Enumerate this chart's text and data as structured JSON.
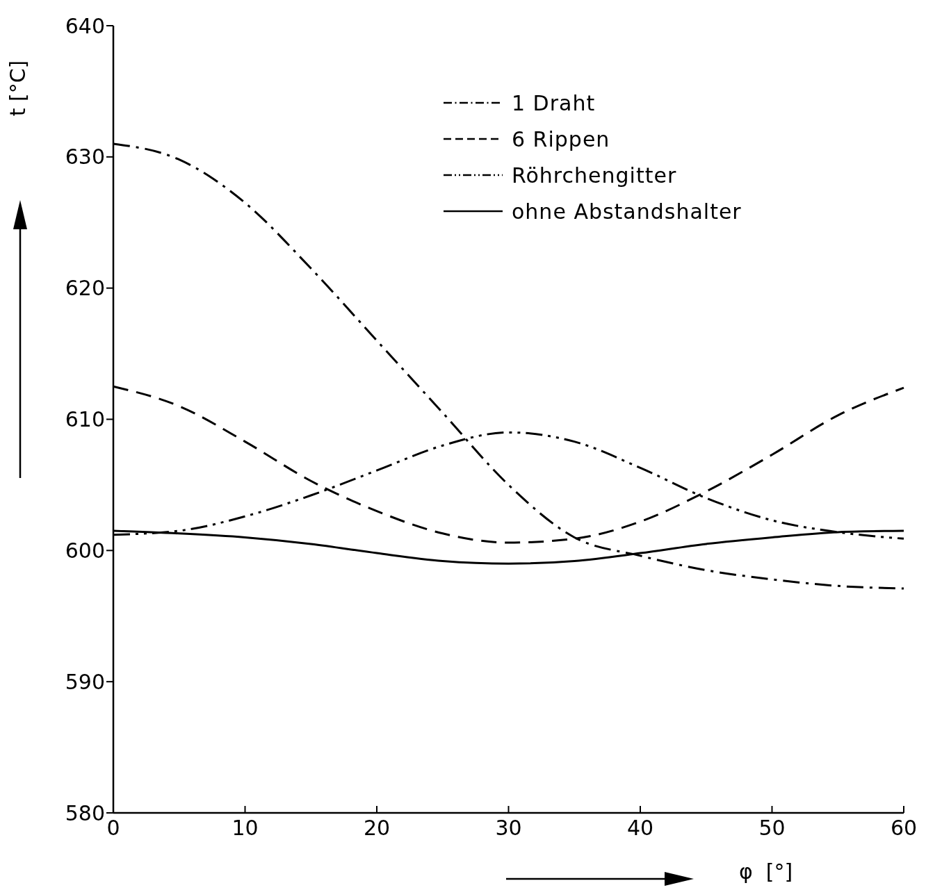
{
  "chart_data": {
    "type": "line",
    "xlabel": "φ  [°]",
    "ylabel": "t [°C]",
    "x": [
      0,
      5,
      10,
      15,
      20,
      25,
      30,
      35,
      40,
      45,
      50,
      55,
      60
    ],
    "xlim": [
      0,
      60
    ],
    "xticks": [
      0,
      10,
      20,
      30,
      40,
      50,
      60
    ],
    "ylim": [
      580,
      640
    ],
    "yticks": [
      580,
      590,
      600,
      610,
      620,
      630,
      640
    ],
    "grid": false,
    "legend": "top right",
    "marker": "none",
    "series": [
      {
        "name": "1 Draht",
        "color": "#000000",
        "line_style": "dashdot",
        "values": [
          631,
          629.8,
          626.5,
          621.5,
          616,
          610.5,
          605,
          601,
          599.6,
          598.5,
          597.8,
          597.3,
          597.1
        ]
      },
      {
        "name": "6 Rippen",
        "color": "#000000",
        "line_style": "dashed",
        "values": [
          612.5,
          611,
          608.3,
          605.3,
          603,
          601.3,
          600.6,
          600.9,
          602.2,
          604.5,
          607.3,
          610.3,
          612.4
        ]
      },
      {
        "name": "Röhrchengitter",
        "color": "#000000",
        "line_style": "dashdotdot",
        "values": [
          601.2,
          601.5,
          602.6,
          604.2,
          606.1,
          608,
          609,
          608.3,
          606.3,
          604,
          602.3,
          601.4,
          600.9
        ]
      },
      {
        "name": "ohne Abstandshalter",
        "color": "#000000",
        "line_style": "solid",
        "values": [
          601.5,
          601.3,
          601,
          600.5,
          599.8,
          599.2,
          599,
          599.2,
          599.8,
          600.5,
          601,
          601.4,
          601.5
        ]
      }
    ]
  }
}
